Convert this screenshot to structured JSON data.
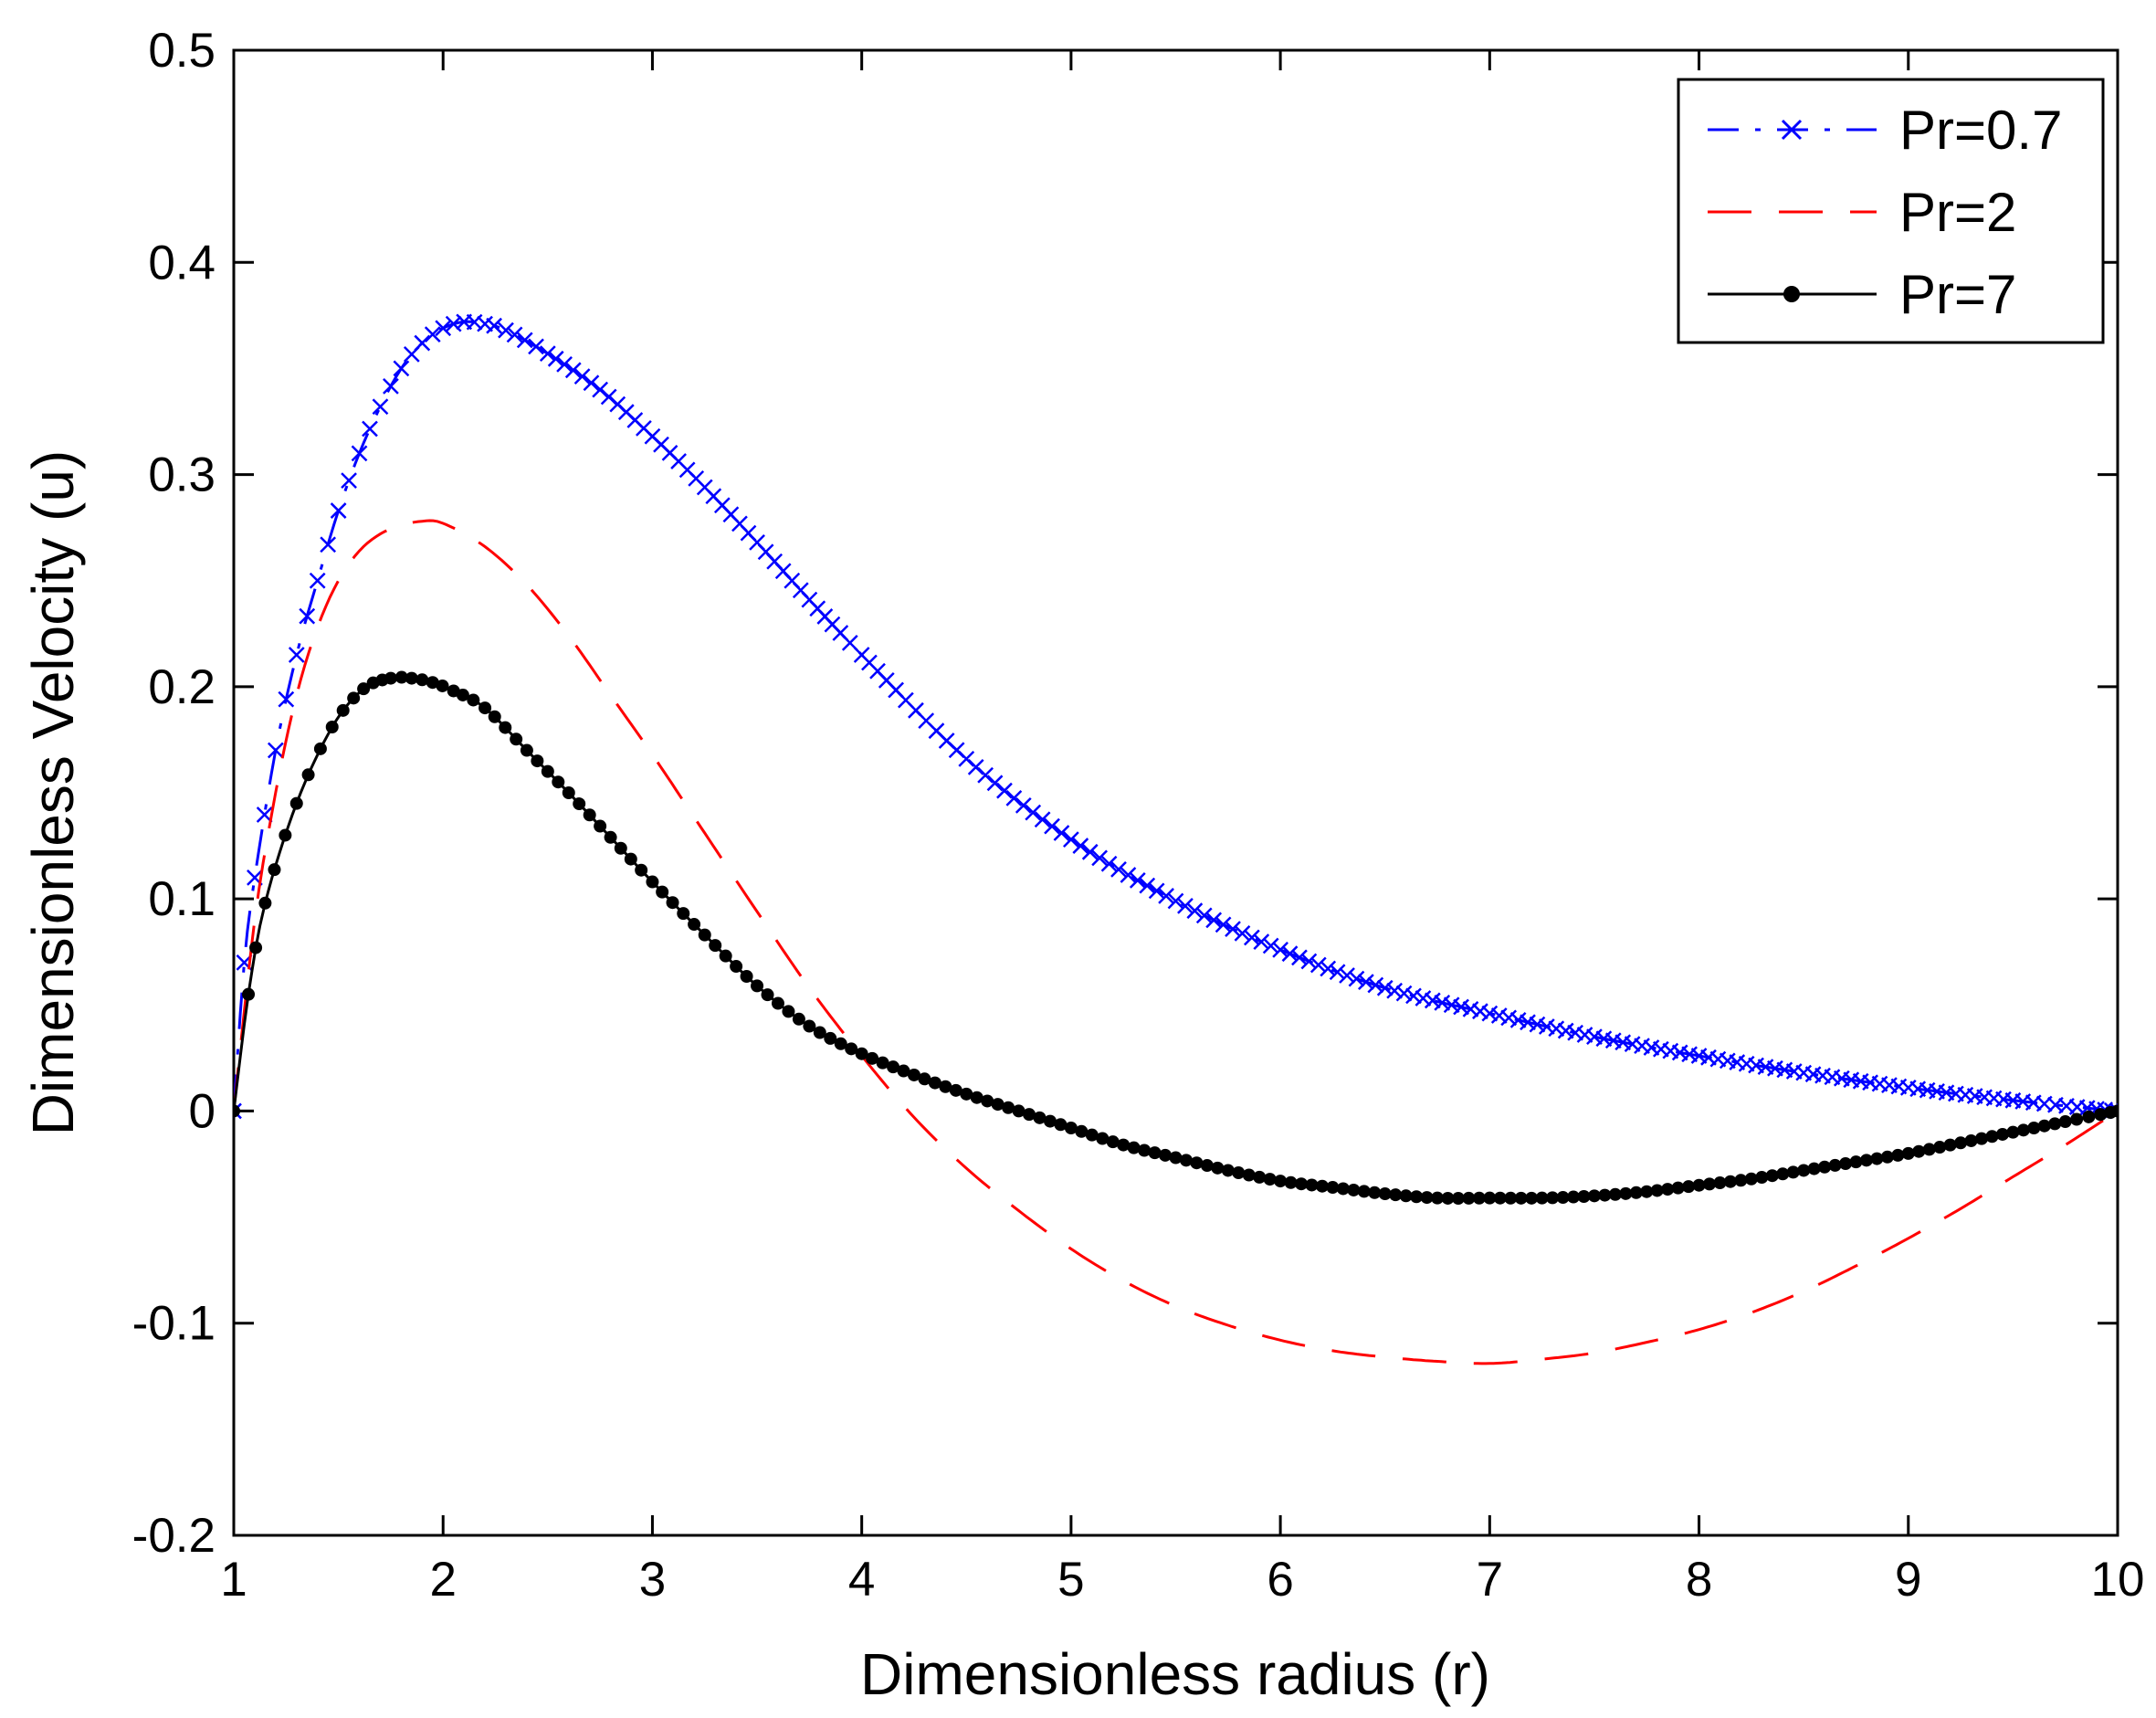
{
  "chart_data": {
    "type": "line",
    "title": "",
    "xlabel": "Dimensionless radius (r)",
    "ylabel": "Dimensionless Velocity (u)",
    "xlim": [
      1,
      10
    ],
    "ylim": [
      -0.2,
      0.5
    ],
    "xticks": [
      1,
      2,
      3,
      4,
      5,
      6,
      7,
      8,
      9,
      10
    ],
    "yticks": [
      -0.2,
      -0.1,
      0,
      0.1,
      0.2,
      0.3,
      0.4,
      0.5
    ],
    "xtick_labels": [
      "1",
      "2",
      "3",
      "4",
      "5",
      "6",
      "7",
      "8",
      "9",
      "10"
    ],
    "ytick_labels": [
      "-0.2",
      "-0.1",
      "0",
      "0.1",
      "0.2",
      "0.3",
      "0.4",
      "0.5"
    ],
    "grid": false,
    "legend_position": "top-right",
    "series": [
      {
        "name": "Pr=0.7",
        "color": "#0000ff",
        "style": "dash-dot",
        "marker": "x",
        "x": [
          1.0,
          1.05,
          1.1,
          1.2,
          1.3,
          1.4,
          1.5,
          1.6,
          1.7,
          1.8,
          1.9,
          2.0,
          2.1,
          2.2,
          2.3,
          2.5,
          2.75,
          3.0,
          3.25,
          3.5,
          3.75,
          4.0,
          4.5,
          5.0,
          5.5,
          6.0,
          6.5,
          7.0,
          7.5,
          8.0,
          8.5,
          9.0,
          9.5,
          10.0
        ],
        "y": [
          0.0,
          0.07,
          0.11,
          0.17,
          0.215,
          0.25,
          0.283,
          0.31,
          0.332,
          0.35,
          0.362,
          0.369,
          0.372,
          0.371,
          0.368,
          0.357,
          0.34,
          0.318,
          0.294,
          0.268,
          0.241,
          0.215,
          0.166,
          0.128,
          0.099,
          0.076,
          0.058,
          0.046,
          0.035,
          0.026,
          0.018,
          0.011,
          0.005,
          0.0
        ]
      },
      {
        "name": "Pr=2",
        "color": "#ff0000",
        "style": "dashed",
        "marker": "none",
        "x": [
          1.0,
          1.1,
          1.2,
          1.3,
          1.4,
          1.5,
          1.6,
          1.7,
          1.8,
          1.9,
          2.0,
          2.2,
          2.4,
          2.6,
          2.8,
          3.0,
          3.25,
          3.5,
          3.75,
          4.0,
          4.25,
          4.5,
          4.75,
          5.0,
          5.25,
          5.5,
          5.75,
          6.0,
          6.25,
          6.5,
          6.75,
          7.0,
          7.25,
          7.5,
          7.75,
          8.0,
          8.25,
          8.5,
          8.75,
          9.0,
          9.25,
          9.5,
          9.75,
          10.0
        ],
        "y": [
          0.0,
          0.09,
          0.15,
          0.196,
          0.228,
          0.25,
          0.264,
          0.272,
          0.276,
          0.278,
          0.277,
          0.266,
          0.248,
          0.224,
          0.196,
          0.168,
          0.131,
          0.094,
          0.058,
          0.026,
          -0.003,
          -0.027,
          -0.047,
          -0.065,
          -0.08,
          -0.092,
          -0.101,
          -0.108,
          -0.113,
          -0.116,
          -0.118,
          -0.119,
          -0.117,
          -0.114,
          -0.109,
          -0.103,
          -0.095,
          -0.085,
          -0.073,
          -0.06,
          -0.046,
          -0.031,
          -0.016,
          0.0
        ]
      },
      {
        "name": "Pr=7",
        "color": "#000000",
        "style": "solid",
        "marker": "*",
        "x": [
          1.0,
          1.07,
          1.15,
          1.3,
          1.47,
          1.62,
          1.75,
          1.85,
          1.95,
          2.05,
          2.2,
          2.4,
          2.6,
          2.8,
          3.0,
          3.25,
          3.5,
          3.75,
          4.0,
          4.25,
          4.5,
          4.75,
          5.0,
          5.25,
          5.5,
          5.75,
          6.0,
          6.25,
          6.5,
          6.75,
          7.0,
          7.25,
          7.5,
          7.75,
          8.0,
          8.25,
          8.5,
          8.75,
          9.0,
          9.25,
          9.5,
          9.75,
          10.0
        ],
        "y": [
          0.0,
          0.055,
          0.098,
          0.145,
          0.181,
          0.199,
          0.204,
          0.204,
          0.202,
          0.198,
          0.19,
          0.17,
          0.15,
          0.129,
          0.108,
          0.083,
          0.059,
          0.04,
          0.027,
          0.017,
          0.008,
          0.0,
          -0.008,
          -0.016,
          -0.022,
          -0.028,
          -0.033,
          -0.036,
          -0.039,
          -0.041,
          -0.041,
          -0.041,
          -0.04,
          -0.038,
          -0.035,
          -0.032,
          -0.028,
          -0.024,
          -0.02,
          -0.015,
          -0.01,
          -0.005,
          0.0
        ]
      }
    ]
  }
}
